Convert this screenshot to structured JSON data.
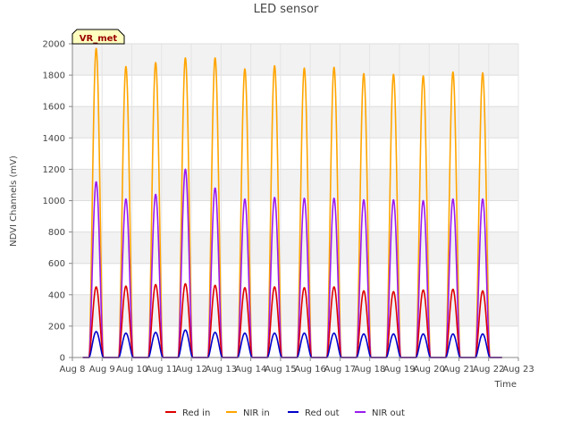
{
  "chart_data": {
    "type": "line",
    "title": "LED sensor",
    "xlabel": "Time",
    "ylabel": "NDVI Channels (mV)",
    "badge": "VR_met",
    "xlim": [
      8,
      23
    ],
    "ylim": [
      0,
      2000
    ],
    "x_ticks": [
      8,
      9,
      10,
      11,
      12,
      13,
      14,
      15,
      16,
      17,
      18,
      19,
      20,
      21,
      22,
      23
    ],
    "x_tick_labels": [
      "Aug 8",
      "Aug 9",
      "Aug 10",
      "Aug 11",
      "Aug 12",
      "Aug 13",
      "Aug 14",
      "Aug 15",
      "Aug 16",
      "Aug 17",
      "Aug 18",
      "Aug 19",
      "Aug 20",
      "Aug 21",
      "Aug 22",
      "Aug 23"
    ],
    "y_ticks": [
      0,
      200,
      400,
      600,
      800,
      1000,
      1200,
      1400,
      1600,
      1800,
      2000
    ],
    "grid": true,
    "legend_position": "bottom",
    "days": [
      8.8,
      9.8,
      10.8,
      11.8,
      12.8,
      13.8,
      14.8,
      15.8,
      16.8,
      17.8,
      18.8,
      19.8,
      20.8,
      21.8
    ],
    "series": [
      {
        "name": "Red in",
        "color": "#dd0000",
        "daily_peak": [
          450,
          455,
          465,
          470,
          460,
          445,
          450,
          445,
          450,
          425,
          420,
          430,
          435,
          425
        ]
      },
      {
        "name": "NIR in",
        "color": "#ffa500",
        "daily_peak": [
          1970,
          1855,
          1880,
          1910,
          1910,
          1840,
          1860,
          1845,
          1850,
          1810,
          1805,
          1795,
          1820,
          1815
        ]
      },
      {
        "name": "Red out",
        "color": "#0000cc",
        "daily_peak": [
          165,
          155,
          160,
          175,
          160,
          155,
          155,
          155,
          155,
          150,
          150,
          150,
          150,
          150
        ]
      },
      {
        "name": "NIR out",
        "color": "#9a1aee",
        "daily_peak": [
          1120,
          1010,
          1040,
          1200,
          1080,
          1010,
          1020,
          1015,
          1015,
          1005,
          1005,
          1000,
          1010,
          1010
        ]
      }
    ]
  }
}
